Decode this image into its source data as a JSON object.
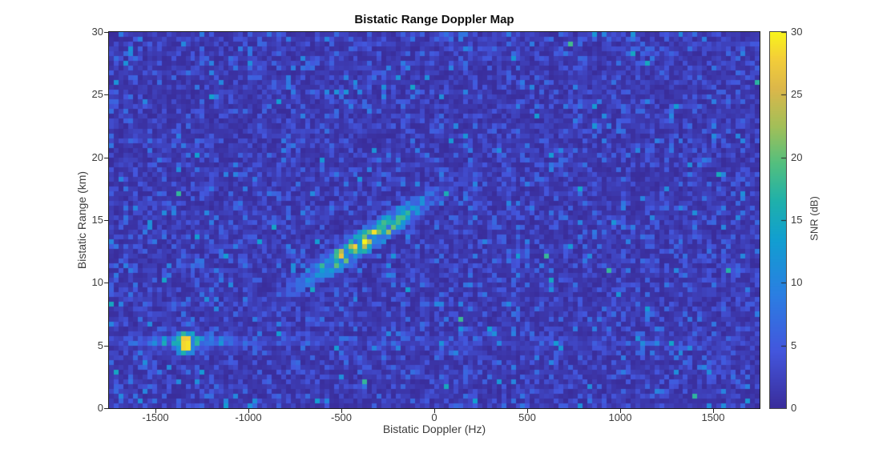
{
  "chart_data": {
    "type": "heatmap",
    "title": "Bistatic Range Doppler Map",
    "xlabel": "Bistatic Doppler (Hz)",
    "ylabel": "Bistatic Range (km)",
    "xlim": [
      -1750,
      1750
    ],
    "ylim": [
      0,
      30
    ],
    "xticks": [
      -1500,
      -1000,
      -500,
      0,
      500,
      1000,
      1500
    ],
    "yticks": [
      0,
      5,
      10,
      15,
      20,
      25,
      30
    ],
    "colorbar": {
      "label": "SNR (dB)",
      "min": 0,
      "max": 30,
      "ticks": [
        0,
        5,
        10,
        15,
        20,
        25,
        30
      ]
    },
    "colormap": {
      "name": "parula",
      "stops": [
        [
          0.0,
          "#3a2d9b"
        ],
        [
          0.15,
          "#4356dd"
        ],
        [
          0.3,
          "#2b7ee2"
        ],
        [
          0.45,
          "#119fd0"
        ],
        [
          0.55,
          "#1fb0ab"
        ],
        [
          0.65,
          "#53bf7f"
        ],
        [
          0.75,
          "#a3bf58"
        ],
        [
          0.85,
          "#dcb74a"
        ],
        [
          0.93,
          "#f3ce39"
        ],
        [
          1.0,
          "#f8f41c"
        ]
      ]
    },
    "grid": {
      "cols": 136,
      "rows": 78
    },
    "noise": {
      "model": "exponential",
      "mean_snr_db": 2.3,
      "seed": 7
    },
    "features": [
      {
        "name": "moving-target-streak",
        "shape": "tilted-ellipse",
        "start": {
          "doppler_hz": -760,
          "range_km": 9.5
        },
        "end": {
          "doppler_hz": 0,
          "range_km": 17
        },
        "width_km": 2.2,
        "peak_snr_db": 28
      },
      {
        "name": "zero-velocity-return",
        "shape": "point-with-doppler-sidelobes",
        "doppler_hz": -1330,
        "range_km": 5.3,
        "peak_snr_db": 30
      }
    ]
  }
}
